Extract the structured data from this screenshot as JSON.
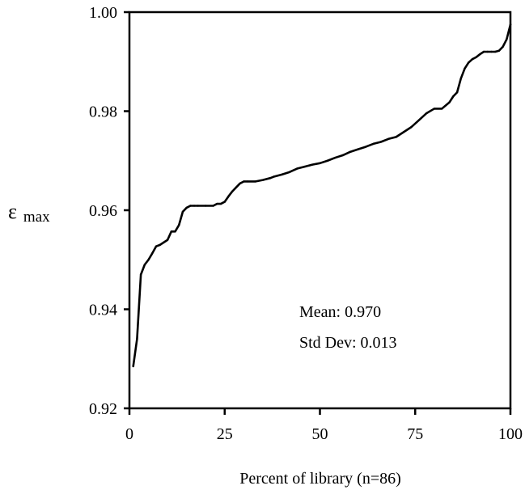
{
  "chart_data": {
    "type": "line",
    "title": "",
    "xlabel": "Percent of library (n=86)",
    "ylabel": "ε max",
    "ylabel_symbol": "ε",
    "ylabel_subscript": "max",
    "xlim": [
      0,
      100
    ],
    "ylim": [
      0.92,
      1.0
    ],
    "xticks": [
      0,
      25,
      50,
      75,
      100
    ],
    "xtick_labels": [
      "0",
      "25",
      "50",
      "75",
      "100"
    ],
    "yticks": [
      0.92,
      0.94,
      0.96,
      0.98,
      1.0
    ],
    "ytick_labels": [
      "0.92",
      "0.94",
      "0.96",
      "0.98",
      "1.00"
    ],
    "grid": false,
    "legend": "none",
    "annotations": [
      {
        "text": "Mean:  0.970"
      },
      {
        "text": "Std Dev: 0.013"
      }
    ],
    "series": [
      {
        "color": "#000000",
        "x": [
          1,
          2,
          3,
          4,
          5,
          6,
          7,
          8,
          10,
          11,
          12,
          13,
          14,
          15,
          16,
          17,
          18,
          20,
          22,
          23,
          24,
          25,
          26,
          27,
          28,
          29,
          30,
          31,
          33,
          35,
          37,
          38,
          40,
          42,
          44,
          46,
          48,
          50,
          52,
          54,
          56,
          58,
          60,
          62,
          64,
          66,
          68,
          70,
          72,
          74,
          76,
          78,
          80,
          82,
          84,
          85,
          86,
          87,
          88,
          89,
          90,
          91,
          92,
          93,
          94,
          95,
          96,
          97,
          98,
          99,
          100
        ],
        "y": [
          0.9285,
          0.934,
          0.947,
          0.949,
          0.95,
          0.9513,
          0.9527,
          0.953,
          0.954,
          0.9557,
          0.9557,
          0.957,
          0.9597,
          0.9605,
          0.9609,
          0.9609,
          0.9609,
          0.9609,
          0.9609,
          0.9613,
          0.9613,
          0.9617,
          0.9628,
          0.9638,
          0.9646,
          0.9654,
          0.9658,
          0.9658,
          0.9658,
          0.9661,
          0.9665,
          0.9668,
          0.9672,
          0.9677,
          0.9684,
          0.9688,
          0.9692,
          0.9695,
          0.97,
          0.9706,
          0.9711,
          0.9718,
          0.9723,
          0.9728,
          0.9734,
          0.9738,
          0.9744,
          0.9748,
          0.9758,
          0.9768,
          0.9782,
          0.9796,
          0.9805,
          0.9805,
          0.9818,
          0.983,
          0.9838,
          0.9866,
          0.9886,
          0.9898,
          0.9905,
          0.9909,
          0.9915,
          0.992,
          0.992,
          0.992,
          0.992,
          0.9922,
          0.993,
          0.9945,
          0.9975
        ]
      }
    ]
  }
}
